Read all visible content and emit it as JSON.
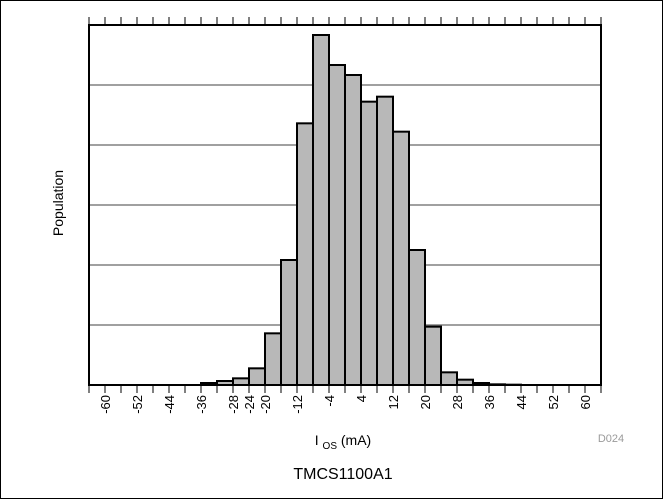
{
  "chart_data": {
    "type": "bar",
    "xlabel_main": "I",
    "xlabel_sub": "OS",
    "xlabel_unit": " (mA)",
    "ylabel": "Population",
    "figure_code": "D024",
    "caption": "TMCS1100A1",
    "xlim": [
      -64,
      64
    ],
    "ylim": [
      0,
      108
    ],
    "grid": "horizontal",
    "tick_labels": [
      -60,
      -52,
      -44,
      -36,
      -28,
      -24,
      -20,
      -12,
      -4,
      4,
      12,
      20,
      28,
      36,
      44,
      52,
      60
    ],
    "bin_width": 4,
    "bins": [
      {
        "x": -36,
        "value": 0.6
      },
      {
        "x": -32,
        "value": 1.2
      },
      {
        "x": -28,
        "value": 2.0
      },
      {
        "x": -24,
        "value": 5.0
      },
      {
        "x": -20,
        "value": 15.5
      },
      {
        "x": -16,
        "value": 37.5
      },
      {
        "x": -12,
        "value": 78.5
      },
      {
        "x": -8,
        "value": 105.0
      },
      {
        "x": -4,
        "value": 96.0
      },
      {
        "x": 0,
        "value": 93.0
      },
      {
        "x": 4,
        "value": 85.0
      },
      {
        "x": 8,
        "value": 86.5
      },
      {
        "x": 12,
        "value": 76.0
      },
      {
        "x": 16,
        "value": 40.5
      },
      {
        "x": 20,
        "value": 17.5
      },
      {
        "x": 24,
        "value": 3.8
      },
      {
        "x": 28,
        "value": 1.6
      },
      {
        "x": 32,
        "value": 0.6
      },
      {
        "x": 36,
        "value": 0.2
      },
      {
        "x": 40,
        "value": 0.1
      }
    ]
  }
}
